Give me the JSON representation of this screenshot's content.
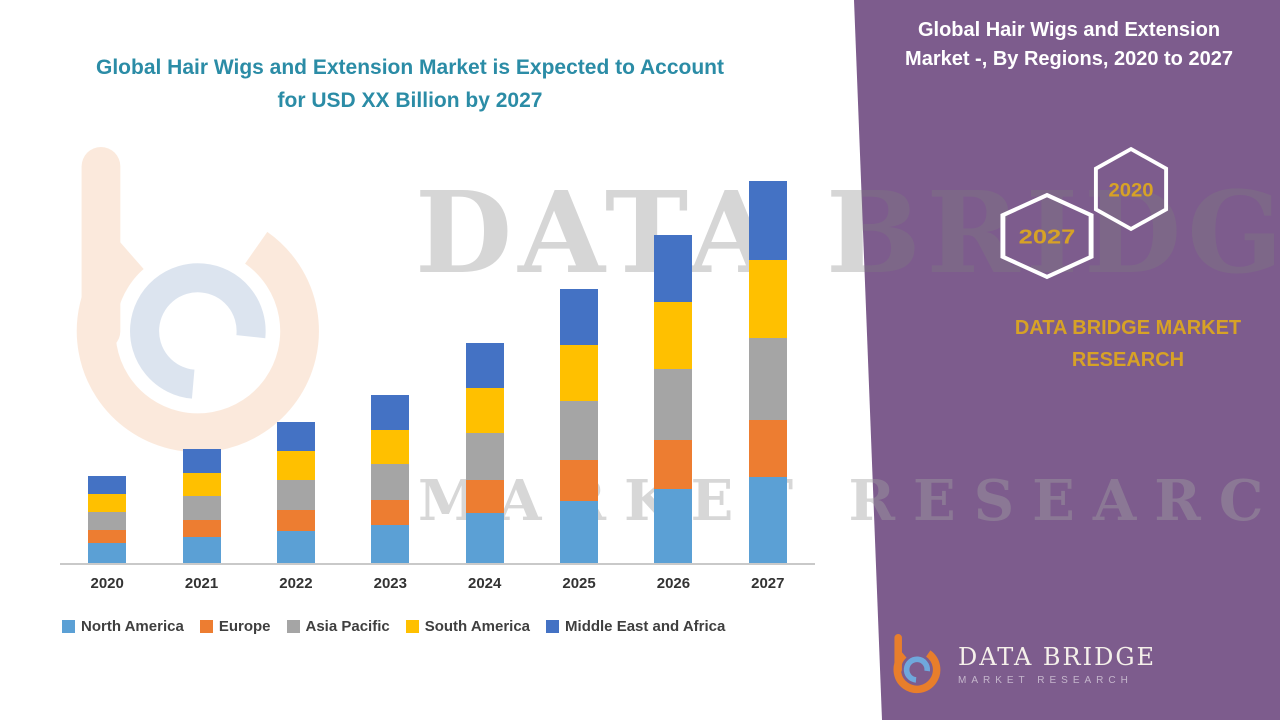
{
  "header": {
    "chart_title_line1": "Global Hair Wigs and Extension Market is Expected to Account",
    "chart_title_line2": "for USD XX Billion by 2027"
  },
  "right_panel": {
    "title_line1": "Global Hair Wigs and Extension",
    "title_line2": "Market -, By Regions, 2020 to 2027",
    "hexagon_left_label": "2027",
    "hexagon_right_label": "2020",
    "brand_text": "DATA BRIDGE MARKET RESEARCH",
    "background_color": "#7D5C8D",
    "accent_gold": "#D7A226"
  },
  "watermark": {
    "line1": "DATA BRIDGE",
    "line2": "MARKET RESEARCH"
  },
  "footer_logo": {
    "brand": "DATA BRIDGE",
    "sub_brand": "MARKET RESEARCH"
  },
  "chart_data": {
    "type": "bar",
    "stacked": true,
    "title": "Global Hair Wigs and Extension Market is Expected to Account for USD XX Billion by 2027",
    "xlabel": "",
    "ylabel": "",
    "y_axis_visible": false,
    "grid": false,
    "legend_position": "bottom",
    "categories": [
      "2020",
      "2021",
      "2022",
      "2023",
      "2024",
      "2025",
      "2026",
      "2027"
    ],
    "series": [
      {
        "name": "North America",
        "color": "#5BA0D5",
        "values": [
          20,
          26,
          32,
          38,
          50,
          62,
          74,
          86
        ]
      },
      {
        "name": "Europe",
        "color": "#ED7D31",
        "values": [
          13,
          17,
          21,
          25,
          33,
          41,
          49,
          57
        ]
      },
      {
        "name": "Asia Pacific",
        "color": "#A5A5A5",
        "values": [
          18,
          24,
          30,
          36,
          47,
          59,
          71,
          82
        ]
      },
      {
        "name": "South America",
        "color": "#FFC000",
        "values": [
          18,
          23,
          29,
          34,
          45,
          56,
          67,
          78
        ]
      },
      {
        "name": "Middle East and Africa",
        "color": "#4472C4",
        "values": [
          18,
          24,
          29,
          35,
          45,
          56,
          67,
          79
        ]
      }
    ],
    "totals_estimated": [
      87,
      114,
      141,
      168,
      220,
      274,
      328,
      382
    ]
  }
}
